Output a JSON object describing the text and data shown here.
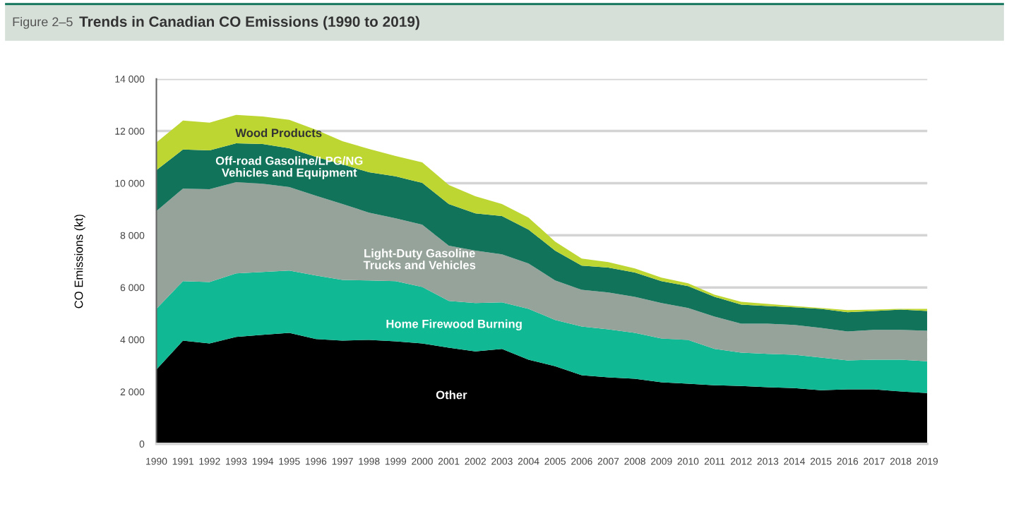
{
  "chart_data": {
    "type": "area",
    "stacked": true,
    "title": "Trends in Canadian CO Emissions (1990 to 2019)",
    "annotations": [
      "Figure 2–5"
    ],
    "ylabel": "CO Emissions (kt)",
    "x": [
      1990,
      1991,
      1992,
      1993,
      1994,
      1995,
      1996,
      1997,
      1998,
      1999,
      2000,
      2001,
      2002,
      2003,
      2004,
      2005,
      2006,
      2007,
      2008,
      2009,
      2010,
      2011,
      2012,
      2013,
      2014,
      2015,
      2016,
      2017,
      2018,
      2019
    ],
    "xlim": [
      1990,
      2019
    ],
    "xticks": [
      1990,
      1991,
      1992,
      1993,
      1994,
      1995,
      1996,
      1997,
      1998,
      1999,
      2000,
      2001,
      2002,
      2003,
      2004,
      2005,
      2006,
      2007,
      2008,
      2009,
      2010,
      2011,
      2012,
      2013,
      2014,
      2015,
      2016,
      2017,
      2018,
      2019
    ],
    "ylim": [
      0,
      14000
    ],
    "yticks": [
      {
        "value": 0,
        "label": "0"
      },
      {
        "value": 2000,
        "label": "2 000"
      },
      {
        "value": 4000,
        "label": "4 000"
      },
      {
        "value": 6000,
        "label": "6 000"
      },
      {
        "value": 8000,
        "label": "8 000"
      },
      {
        "value": 10000,
        "label": "10 000"
      },
      {
        "value": 12000,
        "label": "12 000"
      },
      {
        "value": 14000,
        "label": "14 000"
      }
    ],
    "grid": "y",
    "series": [
      {
        "name": "Other",
        "color": "#000000",
        "values": [
          2850,
          3960,
          3850,
          4100,
          4180,
          4260,
          4020,
          3960,
          3990,
          3930,
          3850,
          3690,
          3550,
          3640,
          3230,
          2980,
          2630,
          2550,
          2500,
          2360,
          2310,
          2250,
          2220,
          2170,
          2140,
          2060,
          2090,
          2090,
          2010,
          1950
        ]
      },
      {
        "name": "Home Firewood Burning",
        "color": "#10b893",
        "values": [
          2330,
          2280,
          2360,
          2440,
          2410,
          2390,
          2440,
          2330,
          2280,
          2310,
          2170,
          1790,
          1850,
          1790,
          1950,
          1770,
          1870,
          1840,
          1760,
          1680,
          1680,
          1390,
          1280,
          1280,
          1280,
          1250,
          1110,
          1140,
          1220,
          1220
        ]
      },
      {
        "name": "Light-Duty Gasoline\nTrucks and Vehicles",
        "color": "#95a39a",
        "values": [
          3750,
          3550,
          3560,
          3500,
          3390,
          3200,
          3060,
          2910,
          2600,
          2410,
          2390,
          2120,
          2010,
          1840,
          1740,
          1520,
          1410,
          1420,
          1380,
          1360,
          1220,
          1240,
          1110,
          1160,
          1140,
          1140,
          1110,
          1140,
          1140,
          1170
        ]
      },
      {
        "name": "Off-road Gasoline/LPG/NG\nVehicles and Equipment",
        "color": "#11735a",
        "values": [
          1570,
          1500,
          1490,
          1490,
          1520,
          1490,
          1490,
          1520,
          1550,
          1610,
          1600,
          1600,
          1430,
          1470,
          1300,
          1140,
          930,
          950,
          930,
          840,
          840,
          760,
          730,
          680,
          680,
          730,
          740,
          730,
          780,
          760
        ]
      },
      {
        "name": "Wood Products",
        "color": "#bdd632",
        "values": [
          1060,
          1110,
          1060,
          1090,
          1060,
          1090,
          1040,
          890,
          890,
          780,
          790,
          730,
          660,
          460,
          460,
          350,
          270,
          210,
          160,
          140,
          110,
          80,
          110,
          80,
          50,
          30,
          80,
          50,
          30,
          80
        ]
      }
    ]
  }
}
